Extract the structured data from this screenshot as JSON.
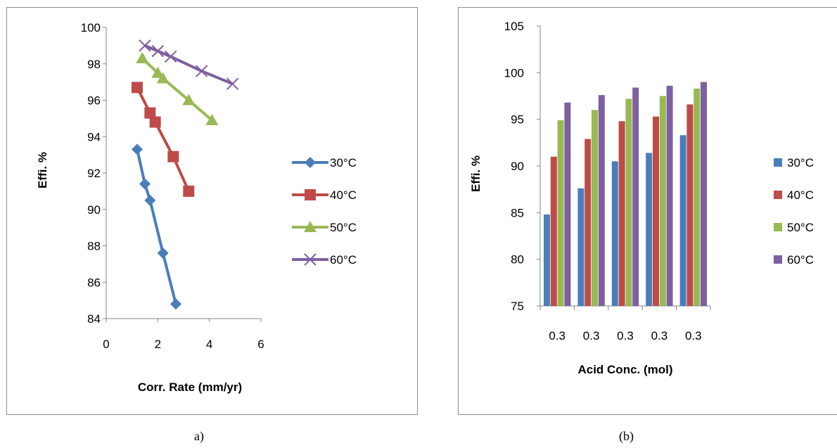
{
  "chart_data": [
    {
      "type": "line",
      "xlabel": "Corr. Rate (mm/yr)",
      "ylabel": "Effi. %",
      "xlim": [
        0,
        6
      ],
      "ylim": [
        84,
        100
      ],
      "xticks": [
        0,
        2,
        4,
        6
      ],
      "yticks": [
        84,
        86,
        88,
        90,
        92,
        94,
        96,
        98,
        100
      ],
      "grid": false,
      "legend_position": "right",
      "series": [
        {
          "name": "30°C",
          "color": "#4a7ebb",
          "marker": "diamond",
          "x": [
            1.2,
            1.5,
            1.7,
            2.2,
            2.7
          ],
          "y": [
            93.3,
            91.4,
            90.5,
            87.6,
            84.8
          ]
        },
        {
          "name": "40°C",
          "color": "#be4b48",
          "marker": "square",
          "x": [
            1.2,
            1.7,
            1.9,
            2.6,
            3.2
          ],
          "y": [
            96.7,
            95.3,
            94.8,
            92.9,
            91.0
          ]
        },
        {
          "name": "50°C",
          "color": "#98b954",
          "marker": "triangle",
          "x": [
            1.4,
            2.0,
            2.2,
            3.2,
            4.1
          ],
          "y": [
            98.3,
            97.5,
            97.2,
            96.0,
            94.9
          ]
        },
        {
          "name": "60°C",
          "color": "#7d60a0",
          "marker": "x",
          "x": [
            1.5,
            2.0,
            2.5,
            3.7,
            4.9
          ],
          "y": [
            99.0,
            98.7,
            98.4,
            97.6,
            96.9
          ]
        }
      ]
    },
    {
      "type": "bar",
      "xlabel": "Acid Conc. (mol)",
      "ylabel": "Effi. %",
      "ylim": [
        75,
        105
      ],
      "yticks": [
        75,
        80,
        85,
        90,
        95,
        100,
        105
      ],
      "grid": false,
      "legend_position": "right",
      "categories": [
        "0.3",
        "0.3",
        "0.3",
        "0.3",
        "0.3"
      ],
      "series": [
        {
          "name": "30°C",
          "color": "#4a7ebb",
          "values": [
            84.8,
            87.6,
            90.5,
            91.4,
            93.3
          ]
        },
        {
          "name": "40°C",
          "color": "#be4b48",
          "values": [
            91.0,
            92.9,
            94.8,
            95.3,
            96.6
          ]
        },
        {
          "name": "50°C",
          "color": "#98b954",
          "values": [
            94.9,
            96.0,
            97.2,
            97.5,
            98.3
          ]
        },
        {
          "name": "60°C",
          "color": "#7d60a0",
          "values": [
            96.8,
            97.6,
            98.4,
            98.6,
            99.0
          ]
        }
      ]
    }
  ],
  "captions": {
    "a": "a)",
    "b": "(b)"
  }
}
